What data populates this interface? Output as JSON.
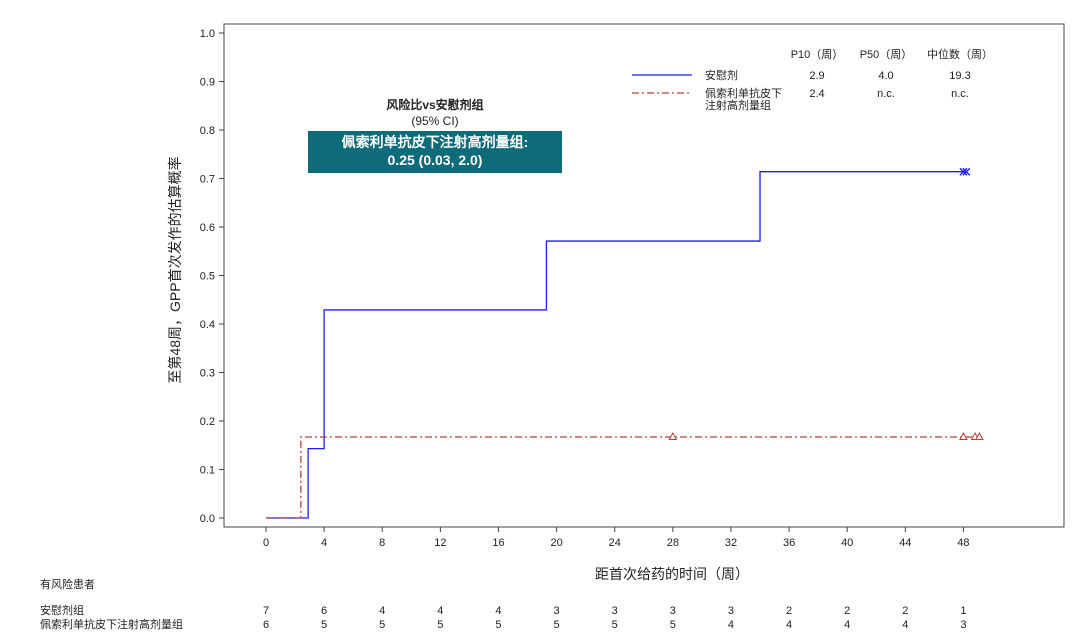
{
  "chart_data": {
    "type": "line",
    "xlabel": "距首次给药的时间（周）",
    "ylabel": "至第48周，GPP首次发作的估算概率",
    "xlim": [
      -4,
      54
    ],
    "ylim": [
      0.0,
      1.0
    ],
    "x_ticks": [
      0,
      4,
      8,
      12,
      16,
      20,
      24,
      28,
      32,
      36,
      40,
      44,
      48
    ],
    "y_ticks": [
      "0.0",
      "0.1",
      "0.2",
      "0.3",
      "0.4",
      "0.5",
      "0.6",
      "0.7",
      "0.8",
      "0.9",
      "1.0"
    ],
    "series": [
      {
        "name": "安慰剂",
        "color": "#1f1fe8",
        "style": "solid",
        "steps": [
          [
            0,
            0.0
          ],
          [
            2.9,
            0.143
          ],
          [
            4.0,
            0.429
          ],
          [
            19.3,
            0.571
          ],
          [
            34.0,
            0.714
          ],
          [
            48.1,
            0.714
          ]
        ],
        "censor_marker": "x",
        "censored": [
          48.0,
          48.2
        ]
      },
      {
        "name": "佩索利单抗皮下注射高剂量组",
        "color": "#b2403a",
        "style": "dashdot",
        "steps": [
          [
            0,
            0.0
          ],
          [
            2.4,
            0.167
          ],
          [
            49.0,
            0.167
          ]
        ],
        "censor_marker": "triangle",
        "censored": [
          28.0,
          48.0,
          48.8,
          49.1
        ]
      }
    ],
    "legend": {
      "position": "top-right",
      "headers": [
        "P10（周）",
        "P50（周）",
        "中位数（周）"
      ],
      "rows": [
        {
          "label": [
            "安慰剂"
          ],
          "values": [
            "2.9",
            "4.0",
            "19.3"
          ]
        },
        {
          "label": [
            "佩索利单抗皮下",
            "注射高剂量组"
          ],
          "values": [
            "2.4",
            "n.c.",
            "n.c."
          ]
        }
      ]
    },
    "hazard_ratio": {
      "title": "风险比vs安慰剂组",
      "ci_label": "(95% CI)",
      "group_label": "佩索利单抗皮下注射高剂量组:",
      "value": "0.25 (0.03, 2.0)"
    },
    "at_risk": {
      "title": "有风险患者",
      "rows": [
        {
          "label": "安慰剂组",
          "counts": [
            7,
            6,
            4,
            4,
            4,
            3,
            3,
            3,
            3,
            2,
            2,
            2,
            1
          ]
        },
        {
          "label": "佩索利单抗皮下注射高剂量组",
          "counts": [
            6,
            5,
            5,
            5,
            5,
            5,
            5,
            5,
            4,
            4,
            4,
            4,
            3
          ]
        }
      ]
    }
  }
}
